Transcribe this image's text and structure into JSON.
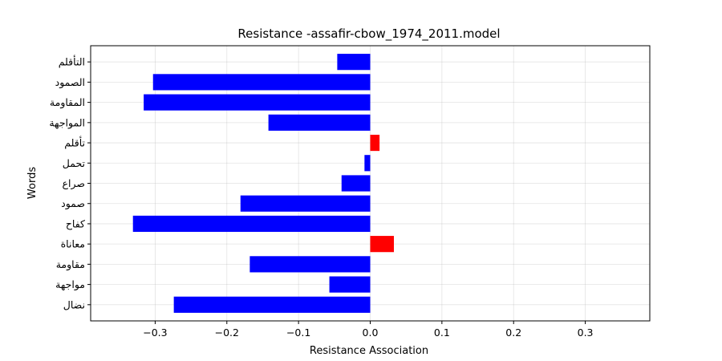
{
  "chart_data": {
    "type": "bar",
    "orientation": "horizontal",
    "title": "Resistance -assafir-cbow_1974_2011.model",
    "xlabel": "Resistance  Association",
    "ylabel": "Words",
    "xlim": [
      -0.39,
      0.39
    ],
    "grid": true,
    "xticks": [
      -0.3,
      -0.2,
      -0.1,
      0.0,
      0.1,
      0.2,
      0.3
    ],
    "xtick_labels": [
      "−0.3",
      "−0.2",
      "−0.1",
      "0.0",
      "0.1",
      "0.2",
      "0.3"
    ],
    "categories": [
      "التأقلم",
      "الصمود",
      "المقاومة",
      "المواجهة",
      "تأقلم",
      "تحمل",
      "صراع",
      "صمود",
      "كفاح",
      "معاناة",
      "مقاومة",
      "مواجهة",
      "نضال"
    ],
    "values": [
      -0.046,
      -0.303,
      -0.316,
      -0.142,
      0.013,
      -0.008,
      -0.04,
      -0.181,
      -0.331,
      0.033,
      -0.168,
      -0.057,
      -0.274
    ],
    "colors": {
      "negative": "#0000ff",
      "positive": "#ff0000"
    }
  }
}
